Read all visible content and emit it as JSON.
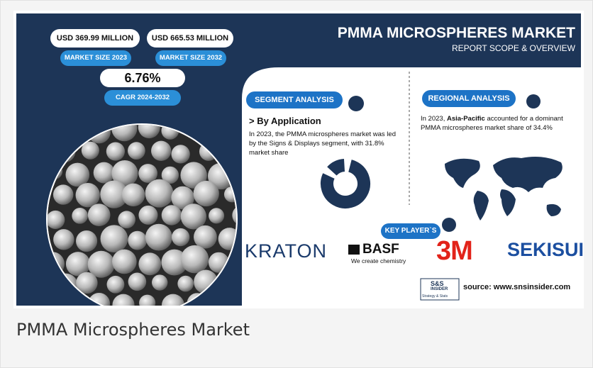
{
  "header": {
    "title": "PMMA MICROSPHERES MARKET",
    "subtitle": "REPORT SCOPE & OVERVIEW"
  },
  "stats": [
    {
      "value": "USD 369.99 MILLION",
      "label": "MARKET SIZE 2023"
    },
    {
      "value": "USD 665.53 MILLION",
      "label": "MARKET SIZE 2032"
    },
    {
      "value": "6.76%",
      "label": "CAGR 2024-2032"
    }
  ],
  "segment": {
    "heading": "SEGMENT ANALYSIS",
    "subheading": "> By Application",
    "text": "In 2023, the PMMA microspheres market was led by the Signs & Displays segment, with 31.8% market share"
  },
  "regional": {
    "heading": "REGIONAL ANALYSIS",
    "text_before": "In 2023, ",
    "highlight": "Asia-Pacific",
    "text_after": " accounted for a dominant PMMA microspheres market share of 34.4%"
  },
  "key_players": {
    "heading": "KEY PLAYER`S",
    "players": [
      "KRATON",
      "BASF",
      "We create chemistry",
      "3M",
      "SEKISUI"
    ]
  },
  "source": {
    "logo": "S&S",
    "logo_sub": "INSIDER",
    "tagline": "Strategy & Stats",
    "text": "source: www.snsinsider.com"
  },
  "caption": "PMMA Microspheres Market"
}
